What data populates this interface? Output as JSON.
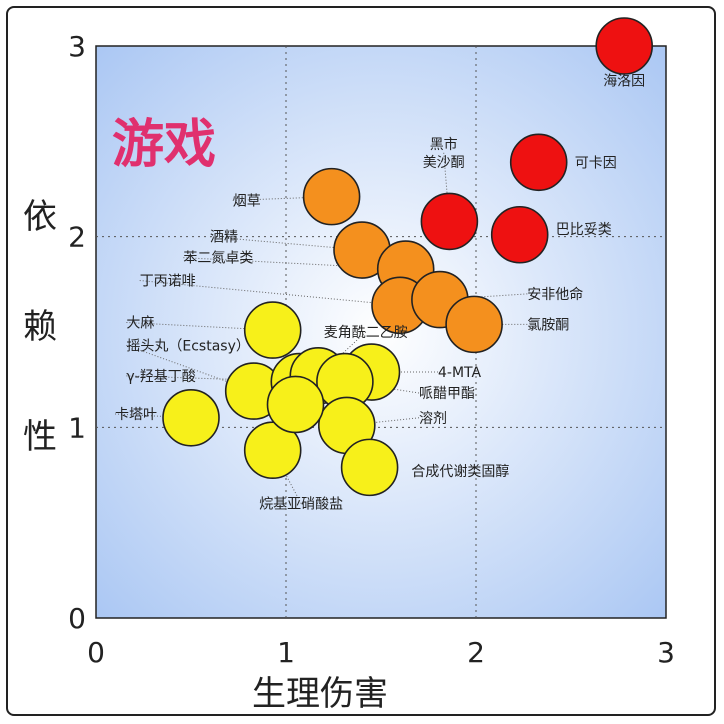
{
  "chart_data": {
    "type": "scatter",
    "title": "",
    "annotation": "游戏",
    "xlabel": "生理伤害",
    "ylabel": "依赖性",
    "xlim": [
      0,
      3
    ],
    "ylim": [
      0,
      3
    ],
    "xticks": [
      "0",
      "1",
      "2",
      "3"
    ],
    "yticks": [
      "0",
      "1",
      "2",
      "3"
    ],
    "grid": "dotted at 1 and 2",
    "colors": {
      "red": "#ee1111",
      "orange": "#f4901e",
      "yellow": "#f7f01a",
      "edge": "#222222",
      "bg_center": "#ffffff",
      "bg_edge": "#a9c6f3"
    },
    "points": [
      {
        "label": "海洛因",
        "x": 2.78,
        "y": 3.0,
        "color": "red",
        "lx": 2.78,
        "ly": 2.82,
        "anchor": "middle"
      },
      {
        "label": "可卡因",
        "x": 2.33,
        "y": 2.39,
        "color": "red",
        "lx": 2.52,
        "ly": 2.39,
        "anchor": "start"
      },
      {
        "label": "巴比妥类",
        "x": 2.23,
        "y": 2.01,
        "color": "red",
        "lx": 2.42,
        "ly": 2.04,
        "anchor": "start"
      },
      {
        "label": "黑市美沙酮",
        "x": 1.86,
        "y": 2.08,
        "color": "red",
        "lx": 1.83,
        "ly": 2.44,
        "anchor": "middle",
        "label_lines": [
          "黑市",
          "美沙酮"
        ]
      },
      {
        "label": "烟草",
        "x": 1.24,
        "y": 2.21,
        "color": "orange",
        "lx": 0.72,
        "ly": 2.19,
        "anchor": "start"
      },
      {
        "label": "酒精",
        "x": 1.4,
        "y": 1.93,
        "color": "orange",
        "lx": 0.6,
        "ly": 2.0,
        "anchor": "start"
      },
      {
        "label": "苯二氮卓类",
        "x": 1.63,
        "y": 1.83,
        "color": "orange",
        "lx": 0.46,
        "ly": 1.89,
        "anchor": "start"
      },
      {
        "label": "丁丙诺啡",
        "x": 1.6,
        "y": 1.64,
        "color": "orange",
        "lx": 0.23,
        "ly": 1.77,
        "anchor": "start"
      },
      {
        "label": "安非他命",
        "x": 1.81,
        "y": 1.67,
        "color": "orange",
        "lx": 2.27,
        "ly": 1.7,
        "anchor": "start"
      },
      {
        "label": "氯胺酮",
        "x": 1.99,
        "y": 1.54,
        "color": "orange",
        "lx": 2.27,
        "ly": 1.54,
        "anchor": "start"
      },
      {
        "label": "大麻",
        "x": 0.93,
        "y": 1.51,
        "color": "yellow",
        "lx": 0.16,
        "ly": 1.55,
        "anchor": "start"
      },
      {
        "label": "摇头丸（Ecstasy）",
        "x": 0.83,
        "y": 1.19,
        "color": "yellow",
        "lx": 0.16,
        "ly": 1.43,
        "anchor": "start"
      },
      {
        "label": "γ-羟基丁酸",
        "x": 1.07,
        "y": 1.24,
        "color": "yellow",
        "lx": 0.16,
        "ly": 1.27,
        "anchor": "start"
      },
      {
        "label": "卡塔叶",
        "x": 0.5,
        "y": 1.05,
        "color": "yellow",
        "lx": 0.1,
        "ly": 1.07,
        "anchor": "start"
      },
      {
        "label": "烷基亚硝酸盐",
        "x": 0.93,
        "y": 0.88,
        "color": "yellow",
        "lx": 1.08,
        "ly": 0.6,
        "anchor": "middle"
      },
      {
        "label": "麦角酰二乙胺",
        "x": 1.17,
        "y": 1.27,
        "color": "yellow",
        "lx": 1.42,
        "ly": 1.5,
        "anchor": "middle"
      },
      {
        "label": "4-MTA",
        "x": 1.45,
        "y": 1.29,
        "color": "yellow",
        "lx": 1.8,
        "ly": 1.29,
        "anchor": "start"
      },
      {
        "label": "哌醋甲酯",
        "x": 1.31,
        "y": 1.24,
        "color": "yellow",
        "lx": 1.7,
        "ly": 1.18,
        "anchor": "start"
      },
      {
        "label": "溶剂",
        "x": 1.32,
        "y": 1.01,
        "color": "yellow",
        "lx": 1.7,
        "ly": 1.05,
        "anchor": "start"
      },
      {
        "label": "合成代谢类固醇",
        "x": 1.44,
        "y": 0.79,
        "color": "yellow",
        "lx": 1.66,
        "ly": 0.77,
        "anchor": "start"
      },
      {
        "label": "",
        "x": 1.05,
        "y": 1.12,
        "color": "yellow"
      }
    ]
  }
}
